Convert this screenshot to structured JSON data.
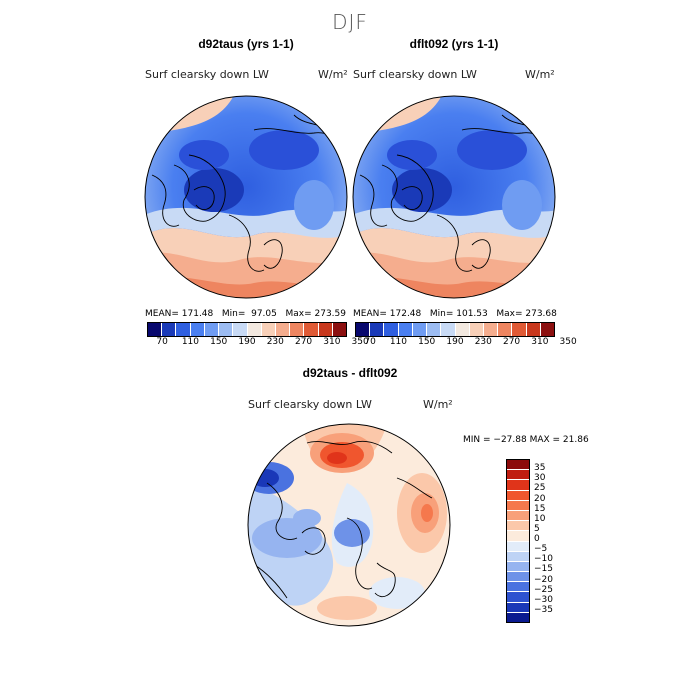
{
  "page_title": "DJF",
  "panel_left": {
    "title": "d92taus (yrs 1-1)",
    "variable": "Surf clearsky down LW",
    "units": "W/m²",
    "stats": {
      "mean_label": "MEAN=",
      "mean": "171.48",
      "min_label": "Min=",
      "min": "97.05",
      "max_label": "Max=",
      "max": "273.59"
    }
  },
  "panel_right": {
    "title": "dflt092 (yrs 1-1)",
    "variable": "Surf clearsky down LW",
    "units": "W/m²",
    "stats": {
      "mean_label": "MEAN=",
      "mean": "172.48",
      "min_label": "Min=",
      "min": "101.53",
      "max_label": "Max=",
      "max": "273.68"
    }
  },
  "abs_colorbar": {
    "colors": [
      "#08086e",
      "#1a3ab8",
      "#2f5fe0",
      "#4a7ff0",
      "#6f9cf2",
      "#9cbcf2",
      "#c8daf5",
      "#f3e9e0",
      "#f8d0b8",
      "#f5ad8e",
      "#ee8560",
      "#e05a35",
      "#c8381d",
      "#8c1010"
    ],
    "labels": [
      "70",
      "110",
      "150",
      "190",
      "230",
      "270",
      "310",
      "350"
    ]
  },
  "diff_panel": {
    "title": "d92taus - dflt092",
    "variable": "Surf clearsky down LW",
    "units": "W/m²",
    "minmax": "MIN = −27.88 MAX =  21.86"
  },
  "diff_colorbar": {
    "colors": [
      "#8c0a0a",
      "#c01d10",
      "#e0341a",
      "#f0562e",
      "#f5784d",
      "#f8a07a",
      "#fbc8aa",
      "#fcebdc",
      "#e2ecf9",
      "#bed3f5",
      "#96b4f0",
      "#6e92e8",
      "#4a72e0",
      "#2e52d0",
      "#1a38b8",
      "#0a1a90"
    ],
    "labels": [
      "35",
      "30",
      "25",
      "20",
      "15",
      "10",
      "5",
      "0",
      "−5",
      "−10",
      "−15",
      "−20",
      "−25",
      "−30",
      "−35"
    ]
  }
}
